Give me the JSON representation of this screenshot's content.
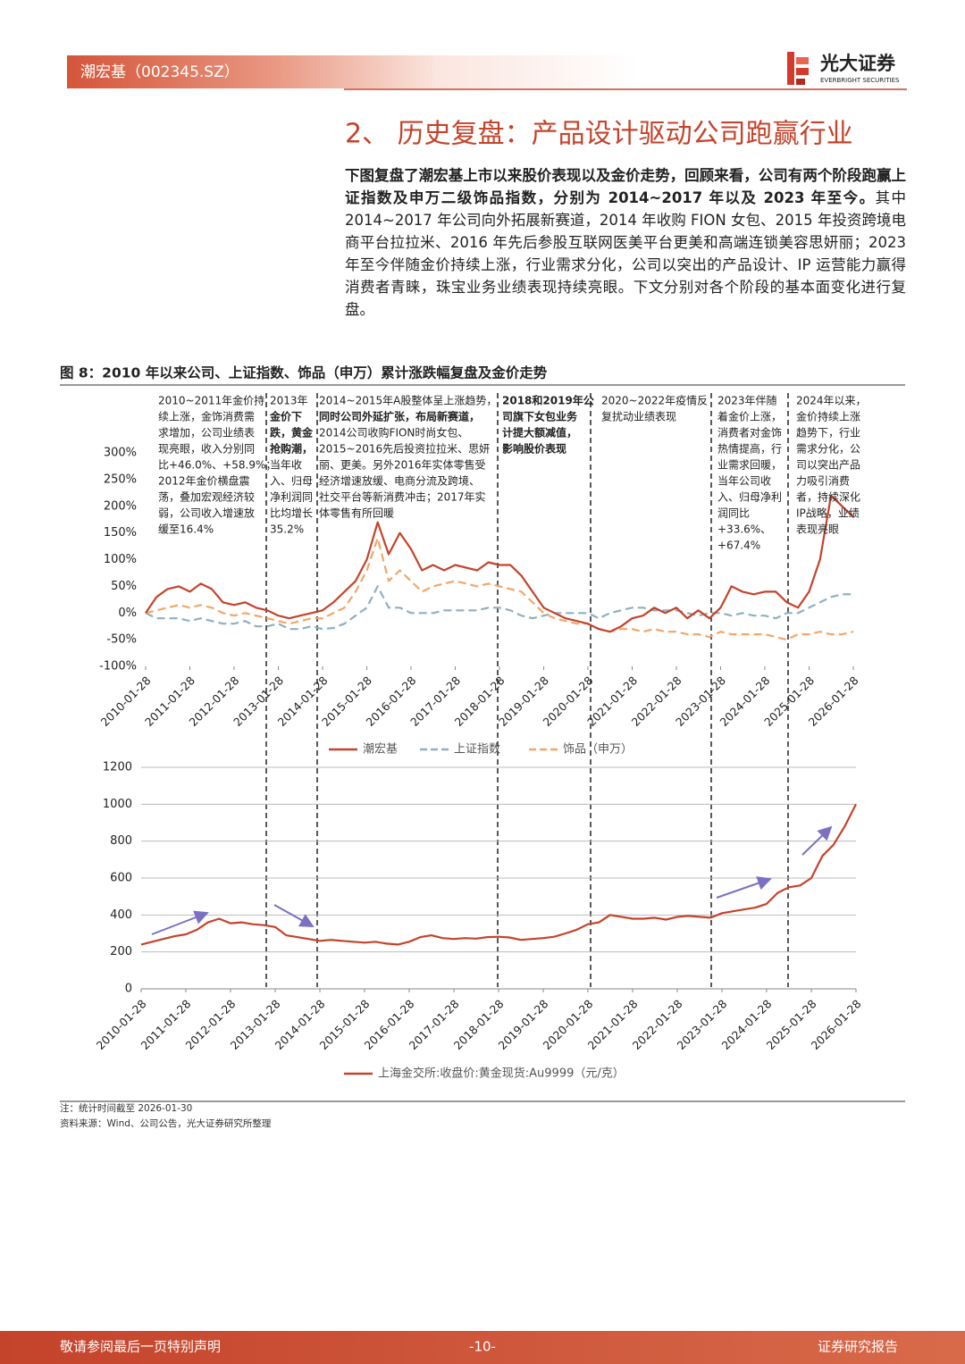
{
  "header": {
    "company": "潮宏基（002345.SZ）",
    "logo_cn": "光大证券",
    "logo_en": "EVERBRIGHT SECURITIES"
  },
  "section_title": "2、 历史复盘：产品设计驱动公司跑赢行业",
  "paragraph": {
    "bold": "下图复盘了潮宏基上市以来股价表现以及金价走势，回顾来看，公司有两个阶段跑赢上证指数及申万二级饰品指数，分别为 2014~2017 年以及 2023 年至今。",
    "text": "其中 2014~2017 年公司向外拓展新赛道，2014 年收购 FION 女包、2015 年投资跨境电商平台拉拉米、2016 年先后参股互联网医美平台更美和高端连锁美容思妍丽；2023 年至今伴随金价持续上涨，行业需求分化，公司以突出的产品设计、IP 运营能力赢得消费者青睐，珠宝业务业绩表现持续亮眼。下文分别对各个阶段的基本面变化进行复盘。"
  },
  "figure": {
    "title": "图 8：2010 年以来公司、上证指数、饰品（申万）累计涨跌幅复盘及金价走势"
  },
  "chart_data": [
    {
      "type": "line",
      "x": [
        "2010-01-28",
        "2010-04-28",
        "2010-07-28",
        "2010-10-28",
        "2011-01-28",
        "2011-04-28",
        "2011-07-28",
        "2011-10-28",
        "2012-01-28",
        "2012-04-28",
        "2012-07-28",
        "2012-10-28",
        "2013-01-28",
        "2013-04-28",
        "2013-07-28",
        "2013-10-28",
        "2014-01-28",
        "2014-04-28",
        "2014-07-28",
        "2014-10-28",
        "2015-01-28",
        "2015-04-28",
        "2015-07-28",
        "2015-10-28",
        "2016-01-28",
        "2016-04-28",
        "2016-07-28",
        "2016-10-28",
        "2017-01-28",
        "2017-04-28",
        "2017-07-28",
        "2017-10-28",
        "2018-01-28",
        "2018-04-28",
        "2018-07-28",
        "2018-10-28",
        "2019-01-28",
        "2019-04-28",
        "2019-07-28",
        "2019-10-28",
        "2020-01-28",
        "2020-04-28",
        "2020-07-28",
        "2020-10-28",
        "2021-01-28",
        "2021-04-28",
        "2021-07-28",
        "2021-10-28",
        "2022-01-28",
        "2022-04-28",
        "2022-07-28",
        "2022-10-28",
        "2023-01-28",
        "2023-04-28",
        "2023-07-28",
        "2023-10-28",
        "2024-01-28",
        "2024-04-28",
        "2024-07-28",
        "2024-10-28",
        "2025-01-28",
        "2025-04-28",
        "2025-07-28",
        "2025-10-28",
        "2026-01-28"
      ],
      "xticks": [
        "2010-01-28",
        "2011-01-28",
        "2012-01-28",
        "2013-01-28",
        "2014-01-28",
        "2015-01-28",
        "2016-01-28",
        "2017-01-28",
        "2018-01-28",
        "2019-01-28",
        "2020-01-28",
        "2021-01-28",
        "2022-01-28",
        "2023-01-28",
        "2024-01-28",
        "2025-01-28",
        "2026-01-28"
      ],
      "ylim": [
        -100,
        300
      ],
      "yticks": [
        {
          "value": 300,
          "label": "300%"
        },
        {
          "value": 250,
          "label": "250%"
        },
        {
          "value": 200,
          "label": "200%"
        },
        {
          "value": 150,
          "label": "150%"
        },
        {
          "value": 100,
          "label": "100%"
        },
        {
          "value": 50,
          "label": "50%"
        },
        {
          "value": 0,
          "label": "0%"
        },
        {
          "value": -50,
          "label": "-50%"
        },
        {
          "value": -100,
          "label": "-100%"
        }
      ],
      "series": [
        {
          "name": "潮宏基",
          "color": "#c4432b",
          "style": "solid",
          "values": [
            0,
            30,
            45,
            50,
            40,
            55,
            45,
            20,
            15,
            20,
            10,
            5,
            -5,
            -10,
            -5,
            0,
            5,
            20,
            40,
            60,
            100,
            170,
            110,
            150,
            120,
            80,
            90,
            80,
            90,
            85,
            80,
            95,
            90,
            90,
            70,
            40,
            10,
            0,
            -10,
            -15,
            -20,
            -30,
            -35,
            -25,
            -10,
            -5,
            10,
            0,
            10,
            -10,
            5,
            -10,
            10,
            50,
            40,
            35,
            40,
            40,
            20,
            10,
            40,
            100,
            220,
            200,
            180
          ]
        },
        {
          "name": "上证指数",
          "color": "#8fb0c0",
          "style": "dashed",
          "values": [
            0,
            -10,
            -10,
            -10,
            -15,
            -10,
            -15,
            -20,
            -20,
            -15,
            -25,
            -25,
            -20,
            -30,
            -30,
            -25,
            -30,
            -28,
            -20,
            -5,
            10,
            50,
            10,
            10,
            0,
            0,
            0,
            5,
            5,
            5,
            5,
            10,
            10,
            5,
            -5,
            -10,
            -5,
            0,
            0,
            0,
            0,
            -10,
            0,
            5,
            10,
            10,
            5,
            5,
            5,
            0,
            -5,
            0,
            0,
            -5,
            0,
            -5,
            -5,
            -10,
            0,
            0,
            10,
            20,
            30,
            35,
            35
          ]
        },
        {
          "name": "饰品（申万）",
          "color": "#f2a66a",
          "style": "dashed",
          "values": [
            0,
            5,
            10,
            15,
            10,
            15,
            10,
            0,
            -5,
            0,
            -5,
            -10,
            -15,
            -20,
            -15,
            -10,
            -10,
            0,
            10,
            40,
            80,
            140,
            60,
            80,
            60,
            40,
            50,
            55,
            60,
            55,
            50,
            55,
            50,
            45,
            40,
            20,
            0,
            -10,
            -15,
            -20,
            -20,
            -30,
            -35,
            -30,
            -30,
            -35,
            -30,
            -35,
            -35,
            -40,
            -40,
            -45,
            -35,
            -40,
            -40,
            -40,
            -40,
            -45,
            -50,
            -40,
            -40,
            -35,
            -40,
            -40,
            -35
          ]
        }
      ],
      "annotations": [
        [
          "2010~2011年金价持",
          "续上涨，金饰消费需",
          "求增加，公司业绩表",
          "现亮眼，收入分别同",
          "比+46.0%、+58.9%；",
          "2012年金价横盘震",
          "荡，叠加宏观经济较",
          "弱，公司收入增速放",
          "缓至16.4%"
        ],
        [
          "2013年",
          "金价下",
          "跌，黄金",
          "抢购潮，",
          "当年收",
          "入、归母",
          "净利润同",
          "比均增长",
          "35.2%"
        ],
        [
          "2014~2015年A股整体呈上涨趋势，",
          "同时公司外延扩张，布局新赛道，",
          "2014公司收购FION时尚女包、",
          "2015~2016先后投资拉拉米、思妍",
          "丽、更美。另外2016年实体零售受",
          "经济增速放缓、电商分流及跨境、",
          "社交平台等新消费冲击；2017年实",
          "体零售有所回暖"
        ],
        [
          "2018和2019年公",
          "司旗下女包业务",
          "计提大额减值，",
          "影响股价表现"
        ],
        [
          "2020~2022年疫情反",
          "复扰动业绩表现"
        ],
        [
          "2023年伴随",
          "着金价上涨，",
          "消费者对金饰",
          "热情提高，行",
          "业需求回暖，",
          "当年公司收",
          "入、归母净利",
          "润同比",
          "+33.6%、",
          "+67.4%"
        ],
        [
          "2024年以来，",
          "金价持续上涨",
          "趋势下，行业",
          "需求分化，公",
          "司以突出产品",
          "力吸引消费",
          "者，持续深化",
          "IP战略，业绩",
          "表现亮眼"
        ]
      ]
    },
    {
      "type": "line",
      "x": [
        "2010-01-28",
        "2010-04-28",
        "2010-07-28",
        "2010-10-28",
        "2011-01-28",
        "2011-04-28",
        "2011-07-28",
        "2011-10-28",
        "2012-01-28",
        "2012-04-28",
        "2012-07-28",
        "2012-10-28",
        "2013-01-28",
        "2013-04-28",
        "2013-07-28",
        "2013-10-28",
        "2014-01-28",
        "2014-04-28",
        "2014-07-28",
        "2014-10-28",
        "2015-01-28",
        "2015-04-28",
        "2015-07-28",
        "2015-10-28",
        "2016-01-28",
        "2016-04-28",
        "2016-07-28",
        "2016-10-28",
        "2017-01-28",
        "2017-04-28",
        "2017-07-28",
        "2017-10-28",
        "2018-01-28",
        "2018-04-28",
        "2018-07-28",
        "2018-10-28",
        "2019-01-28",
        "2019-04-28",
        "2019-07-28",
        "2019-10-28",
        "2020-01-28",
        "2020-04-28",
        "2020-07-28",
        "2020-10-28",
        "2021-01-28",
        "2021-04-28",
        "2021-07-28",
        "2021-10-28",
        "2022-01-28",
        "2022-04-28",
        "2022-07-28",
        "2022-10-28",
        "2023-01-28",
        "2023-04-28",
        "2023-07-28",
        "2023-10-28",
        "2024-01-28",
        "2024-04-28",
        "2024-07-28",
        "2024-10-28",
        "2025-01-28",
        "2025-04-28",
        "2025-07-28",
        "2025-10-28",
        "2026-01-28"
      ],
      "xticks": [
        "2010-01-28",
        "2011-01-28",
        "2012-01-28",
        "2013-01-28",
        "2014-01-28",
        "2015-01-28",
        "2016-01-28",
        "2017-01-28",
        "2018-01-28",
        "2019-01-28",
        "2020-01-28",
        "2021-01-28",
        "2022-01-28",
        "2023-01-28",
        "2024-01-28",
        "2025-01-28",
        "2026-01-28"
      ],
      "ylim": [
        0,
        1200
      ],
      "yticks": [
        0,
        200,
        400,
        600,
        800,
        1000,
        1200
      ],
      "grid": true,
      "series": [
        {
          "name": "上海金交所:收盘价:黄金现货:Au9999（元/克）",
          "color": "#c4432b",
          "style": "solid",
          "values": [
            240,
            255,
            270,
            285,
            295,
            320,
            360,
            380,
            355,
            360,
            350,
            345,
            335,
            290,
            280,
            270,
            260,
            265,
            260,
            255,
            250,
            255,
            245,
            240,
            255,
            280,
            290,
            275,
            270,
            275,
            272,
            280,
            282,
            278,
            265,
            270,
            275,
            282,
            300,
            320,
            350,
            360,
            400,
            390,
            380,
            380,
            385,
            375,
            390,
            395,
            390,
            385,
            410,
            420,
            430,
            440,
            460,
            520,
            550,
            560,
            600,
            720,
            780,
            880,
            1000
          ]
        }
      ]
    }
  ],
  "notes": [
    "注：统计时间截至 2026-01-30",
    "资料来源：Wind、公司公告，光大证券研究所整理"
  ],
  "footer": {
    "left": "敬请参阅最后一页特别声明",
    "center": "-10-",
    "right": "证券研究报告"
  }
}
